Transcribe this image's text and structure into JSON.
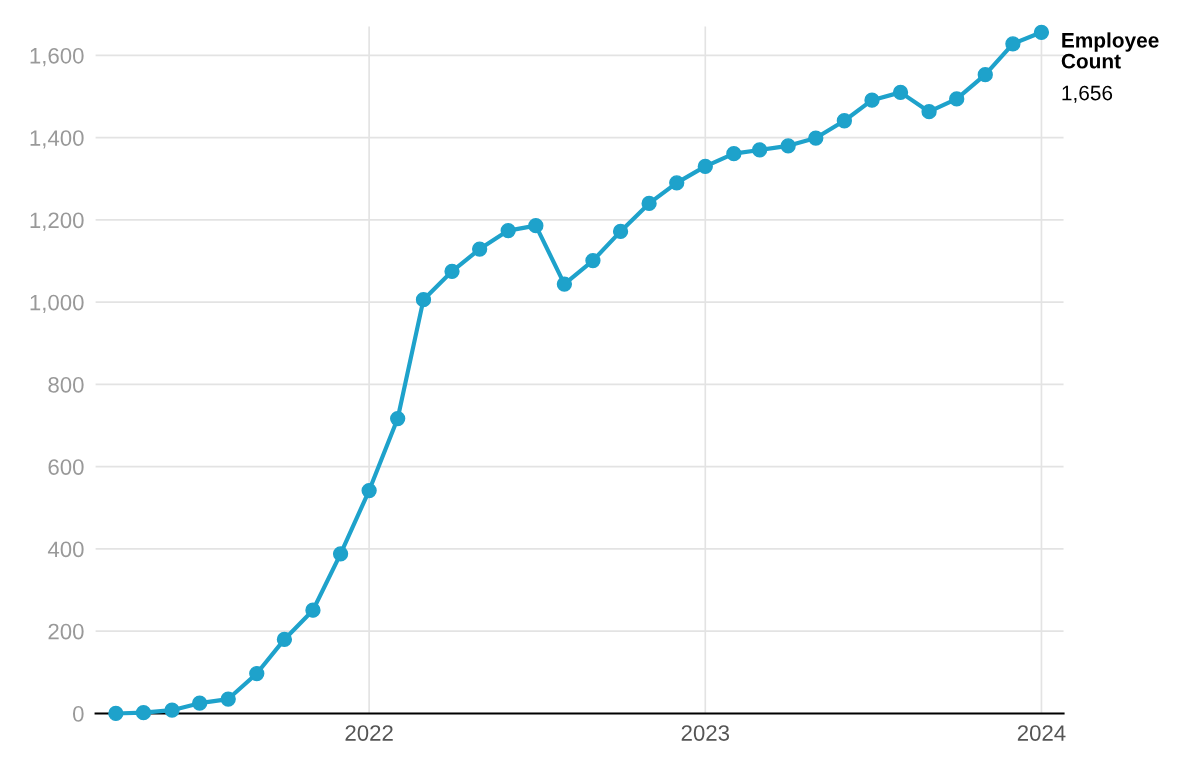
{
  "chart_data": {
    "type": "line",
    "x": [
      "2021-04",
      "2021-05",
      "2021-06",
      "2021-07",
      "2021-08",
      "2021-09",
      "2021-10",
      "2021-11",
      "2021-12",
      "2022-01",
      "2022-02",
      "2022-03",
      "2022-04",
      "2022-05",
      "2022-06",
      "2022-07",
      "2022-08",
      "2022-09",
      "2022-10",
      "2022-11",
      "2022-12",
      "2023-01",
      "2023-02",
      "2023-03",
      "2023-04",
      "2023-05",
      "2023-06",
      "2023-07",
      "2023-08",
      "2023-09",
      "2023-10",
      "2023-11",
      "2023-12",
      "2024-01"
    ],
    "series": [
      {
        "name": "Employee Count",
        "color": "#1ea2cb",
        "values": [
          0,
          2,
          8,
          25,
          35,
          97,
          180,
          251,
          388,
          542,
          717,
          1006,
          1075,
          1129,
          1174,
          1186,
          1044,
          1101,
          1172,
          1240,
          1290,
          1330,
          1361,
          1370,
          1380,
          1399,
          1441,
          1491,
          1510,
          1463,
          1494,
          1553,
          1628,
          1656
        ],
        "value_labels": [
          null,
          null,
          null,
          null,
          null,
          null,
          null,
          null,
          null,
          null,
          null,
          null,
          null,
          null,
          null,
          null,
          null,
          null,
          null,
          null,
          null,
          null,
          null,
          null,
          null,
          null,
          null,
          null,
          null,
          null,
          null,
          null,
          null,
          "1,656"
        ]
      }
    ],
    "xlim": [
      "2021-03-10",
      "2024-01-25"
    ],
    "xticks": [
      "2022",
      "2023",
      "2024"
    ],
    "ylim": [
      0,
      1670
    ],
    "yticks": [
      0,
      200,
      400,
      600,
      800,
      {
        "value": 1000,
        "label": "1,000"
      },
      {
        "value": 1200,
        "label": "1,200"
      },
      {
        "value": 1400,
        "label": "1,400"
      },
      {
        "value": 1600,
        "label": "1,600"
      }
    ],
    "grid": true,
    "marker": "circle",
    "line_style": "solid",
    "legend": false
  }
}
